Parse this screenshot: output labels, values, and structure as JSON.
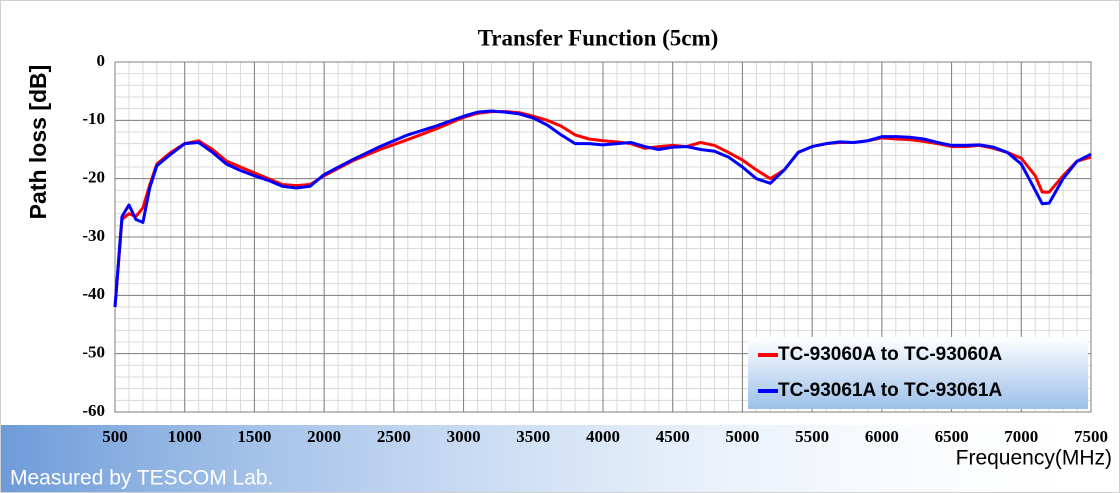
{
  "chart_data": {
    "type": "line",
    "title": "Transfer Function (5cm)",
    "y_label": "Path loss [dB]",
    "x_label": "Frequency(MHz)",
    "annotation": "Measured by TESCOM Lab.",
    "x": [
      500,
      550,
      600,
      650,
      700,
      750,
      800,
      900,
      1000,
      1100,
      1200,
      1300,
      1400,
      1500,
      1600,
      1700,
      1800,
      1900,
      2000,
      2200,
      2400,
      2600,
      2800,
      3000,
      3100,
      3200,
      3300,
      3400,
      3500,
      3600,
      3700,
      3800,
      3900,
      4000,
      4100,
      4200,
      4300,
      4400,
      4500,
      4600,
      4700,
      4800,
      4900,
      5000,
      5100,
      5200,
      5300,
      5400,
      5500,
      5600,
      5700,
      5800,
      5900,
      6000,
      6100,
      6200,
      6300,
      6400,
      6500,
      6600,
      6700,
      6800,
      6900,
      7000,
      7100,
      7150,
      7200,
      7300,
      7400,
      7500
    ],
    "series": [
      {
        "name": "TC-93060A to TC-93060A",
        "color": "#ff0000",
        "values": [
          -42,
          -27,
          -26,
          -26.5,
          -25,
          -21,
          -17.5,
          -15.5,
          -14,
          -13.5,
          -15,
          -17,
          -18,
          -19,
          -20,
          -21,
          -21.2,
          -21,
          -19.5,
          -17,
          -15,
          -13.3,
          -11.5,
          -9.5,
          -8.8,
          -8.5,
          -8.5,
          -8.7,
          -9.3,
          -10,
          -11,
          -12.5,
          -13.2,
          -13.5,
          -13.7,
          -14,
          -14.8,
          -14.5,
          -14.3,
          -14.5,
          -13.8,
          -14.3,
          -15.5,
          -16.8,
          -18.5,
          -20,
          -18.5,
          -15.5,
          -14.5,
          -14,
          -13.8,
          -13.8,
          -13.5,
          -13,
          -13.2,
          -13.3,
          -13.6,
          -14,
          -14.5,
          -14.5,
          -14.3,
          -14.8,
          -15.5,
          -16.5,
          -19.5,
          -22.3,
          -22.3,
          -19.5,
          -17,
          -16.3
        ]
      },
      {
        "name": "TC-93061A to TC-93061A",
        "color": "#0000ff",
        "values": [
          -42,
          -26.5,
          -24.5,
          -27,
          -27.5,
          -21.5,
          -17.8,
          -15.8,
          -14,
          -13.8,
          -15.5,
          -17.5,
          -18.6,
          -19.5,
          -20.3,
          -21.3,
          -21.6,
          -21.3,
          -19.3,
          -16.8,
          -14.5,
          -12.5,
          -11,
          -9.3,
          -8.6,
          -8.4,
          -8.6,
          -8.9,
          -9.6,
          -10.8,
          -12.5,
          -14,
          -14,
          -14.2,
          -14,
          -13.8,
          -14.5,
          -15,
          -14.6,
          -14.5,
          -15,
          -15.3,
          -16.3,
          -18,
          -20,
          -20.8,
          -18.5,
          -15.5,
          -14.5,
          -14,
          -13.7,
          -13.8,
          -13.5,
          -12.8,
          -12.8,
          -12.9,
          -13.2,
          -13.8,
          -14.3,
          -14.3,
          -14.2,
          -14.6,
          -15.5,
          -17.5,
          -22,
          -24.3,
          -24.2,
          -20,
          -17,
          -15.8
        ]
      }
    ],
    "xlim": [
      500,
      7500
    ],
    "xticks": [
      500,
      1000,
      1500,
      2000,
      2500,
      3000,
      3500,
      4000,
      4500,
      5000,
      5500,
      6000,
      6500,
      7000,
      7500
    ],
    "ylim": [
      -60,
      0
    ],
    "yticks": [
      -60,
      -50,
      -40,
      -30,
      -20,
      -10,
      0
    ],
    "grid": true,
    "minor_grid": {
      "x": 100,
      "y": 2
    },
    "legend": "lower right"
  }
}
